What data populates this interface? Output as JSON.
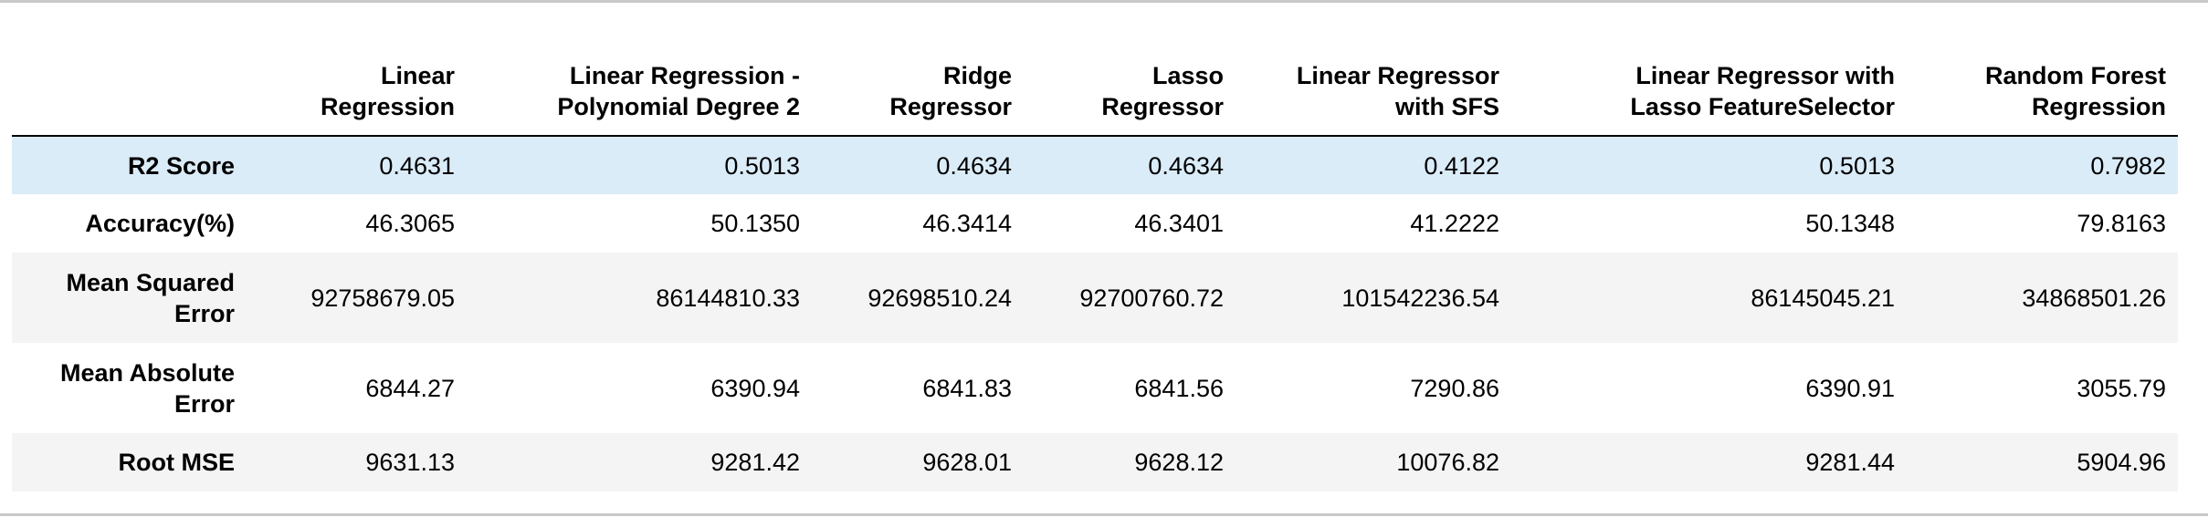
{
  "table": {
    "columns": [
      {
        "line1": "Linear",
        "line2": "Regression"
      },
      {
        "line1": "Linear Regression -",
        "line2": "Polynomial Degree 2"
      },
      {
        "line1": "Ridge",
        "line2": "Regressor"
      },
      {
        "line1": "Lasso",
        "line2": "Regressor"
      },
      {
        "line1": "Linear Regressor",
        "line2": "with SFS"
      },
      {
        "line1": "Linear Regressor with",
        "line2": "Lasso FeatureSelector"
      },
      {
        "line1": "Random Forest",
        "line2": "Regression"
      }
    ],
    "rows": [
      {
        "label_line1": "R2 Score",
        "label_line2": "",
        "values": [
          "0.4631",
          "0.5013",
          "0.4634",
          "0.4634",
          "0.4122",
          "0.5013",
          "0.7982"
        ]
      },
      {
        "label_line1": "Accuracy(%)",
        "label_line2": "",
        "values": [
          "46.3065",
          "50.1350",
          "46.3414",
          "46.3401",
          "41.2222",
          "50.1348",
          "79.8163"
        ]
      },
      {
        "label_line1": "Mean Squared",
        "label_line2": "Error",
        "values": [
          "92758679.05",
          "86144810.33",
          "92698510.24",
          "92700760.72",
          "101542236.54",
          "86145045.21",
          "34868501.26"
        ]
      },
      {
        "label_line1": "Mean Absolute",
        "label_line2": "Error",
        "values": [
          "6844.27",
          "6390.94",
          "6841.83",
          "6841.56",
          "7290.86",
          "6390.91",
          "3055.79"
        ]
      },
      {
        "label_line1": "Root MSE",
        "label_line2": "",
        "values": [
          "9631.13",
          "9281.42",
          "9628.01",
          "9628.12",
          "10076.82",
          "9281.44",
          "5904.96"
        ]
      }
    ]
  }
}
